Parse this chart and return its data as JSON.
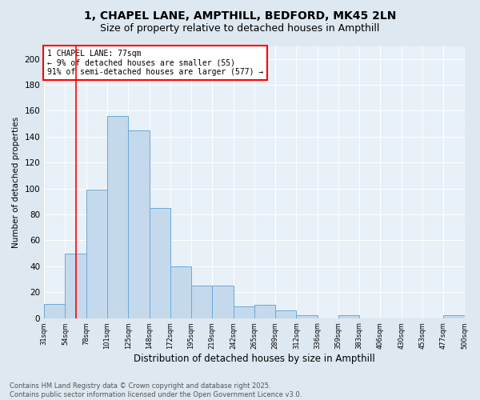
{
  "title1": "1, CHAPEL LANE, AMPTHILL, BEDFORD, MK45 2LN",
  "title2": "Size of property relative to detached houses in Ampthill",
  "xlabel": "Distribution of detached houses by size in Ampthill",
  "ylabel": "Number of detached properties",
  "bar_values": [
    11,
    50,
    99,
    156,
    145,
    85,
    40,
    25,
    25,
    9,
    10,
    6,
    2,
    0,
    2,
    0,
    0,
    0,
    0,
    2
  ],
  "categories": [
    "31sqm",
    "54sqm",
    "78sqm",
    "101sqm",
    "125sqm",
    "148sqm",
    "172sqm",
    "195sqm",
    "219sqm",
    "242sqm",
    "265sqm",
    "289sqm",
    "312sqm",
    "336sqm",
    "359sqm",
    "383sqm",
    "406sqm",
    "430sqm",
    "453sqm",
    "477sqm",
    "500sqm"
  ],
  "bar_color": "#c5d9ed",
  "bar_edge_color": "#6aaad4",
  "vline_x": 1.5,
  "annotation_box_text": "1 CHAPEL LANE: 77sqm\n← 9% of detached houses are smaller (55)\n91% of semi-detached houses are larger (577) →",
  "annotation_box_color": "white",
  "annotation_box_edge_color": "red",
  "vline_color": "red",
  "bg_color": "#dde8f0",
  "plot_bg_color": "#e8f0f8",
  "grid_color": "#ffffff",
  "footnote": "Contains HM Land Registry data © Crown copyright and database right 2025.\nContains public sector information licensed under the Open Government Licence v3.0.",
  "ylim": [
    0,
    210
  ],
  "yticks": [
    0,
    20,
    40,
    60,
    80,
    100,
    120,
    140,
    160,
    180,
    200
  ],
  "title_fontsize": 10,
  "subtitle_fontsize": 9,
  "annotation_fontsize": 7,
  "footnote_fontsize": 6
}
